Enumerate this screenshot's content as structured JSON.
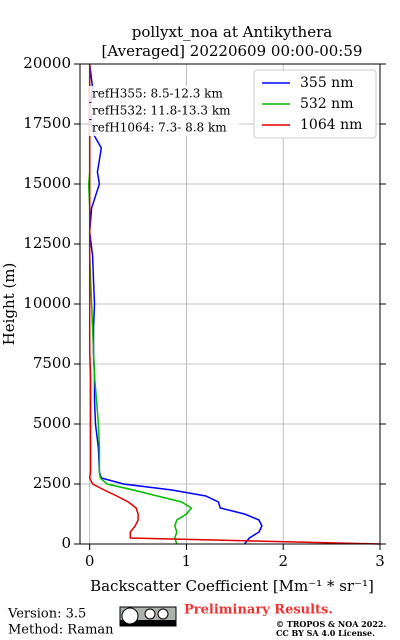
{
  "chart_data": {
    "type": "line",
    "title": "pollyxt_noa at Antikythera",
    "subtitle": "[Averaged] 20220609 00:00-00:59",
    "x_label": "Backscatter Coefficient [Mm⁻¹ * sr⁻¹]",
    "y_label": "Height (m)",
    "y": [
      0,
      250,
      500,
      750,
      1000,
      1250,
      1500,
      1750,
      2000,
      2250,
      2500,
      2750,
      3000,
      4000,
      5000,
      6000,
      7000,
      8000,
      9000,
      10000,
      11000,
      12000,
      13000,
      14000,
      15000,
      15500,
      16000,
      16500,
      17000,
      17500,
      18000,
      19000,
      20000
    ],
    "series": [
      {
        "name": "355 nm",
        "color": "#0000ff",
        "values": [
          1.6,
          1.65,
          1.75,
          1.78,
          1.75,
          1.6,
          1.35,
          1.33,
          1.2,
          0.85,
          0.35,
          0.12,
          0.1,
          0.09,
          0.06,
          0.05,
          0.05,
          0.04,
          0.04,
          0.05,
          0.04,
          0.03,
          0.0,
          0.02,
          0.1,
          0.08,
          0.1,
          0.12,
          0.05,
          0.02,
          0.0,
          0.03,
          0.0
        ]
      },
      {
        "name": "532 nm",
        "color": "#00bb00",
        "values": [
          0.9,
          0.88,
          0.9,
          0.88,
          0.9,
          1.0,
          1.05,
          0.95,
          0.7,
          0.45,
          0.18,
          0.11,
          0.1,
          0.1,
          0.09,
          0.07,
          0.05,
          0.04,
          0.03,
          0.02,
          0.01,
          0.0,
          0.0,
          0.0,
          -0.01,
          0.0,
          0.0,
          0.0,
          0.0,
          0.0,
          0.0,
          0.0,
          0.0
        ]
      },
      {
        "name": "1064 nm",
        "color": "#dd0000",
        "values": [
          3.0,
          0.42,
          0.42,
          0.47,
          0.5,
          0.5,
          0.48,
          0.4,
          0.28,
          0.15,
          0.03,
          0.0,
          0.01,
          0.01,
          0.01,
          0.01,
          0.01,
          0.0,
          0.0,
          0.0,
          0.0,
          0.0,
          0.0,
          0.0,
          0.0,
          0.0,
          0.0,
          0.0,
          0.0,
          0.0,
          0.0,
          0.0,
          0.0
        ]
      }
    ],
    "xlim": [
      -0.1,
      3
    ],
    "xticks": [
      0,
      1,
      2,
      3
    ],
    "ylim": [
      0,
      20000
    ],
    "yticks": [
      0,
      2500,
      5000,
      7500,
      10000,
      12500,
      15000,
      17500,
      20000
    ],
    "grid": true,
    "legend": "upper right",
    "annotations": [
      "refH355:  8.5-12.3 km",
      "refH532: 11.8-13.3 km",
      "refH1064:  7.3- 8.8 km"
    ],
    "footer": {
      "version": "Version: 3.5",
      "method": "Method: Raman",
      "preliminary": "Preliminary Results.",
      "copyright": "© TROPOS & NOA 2022.",
      "license": "CC BY SA 4.0 License."
    }
  }
}
